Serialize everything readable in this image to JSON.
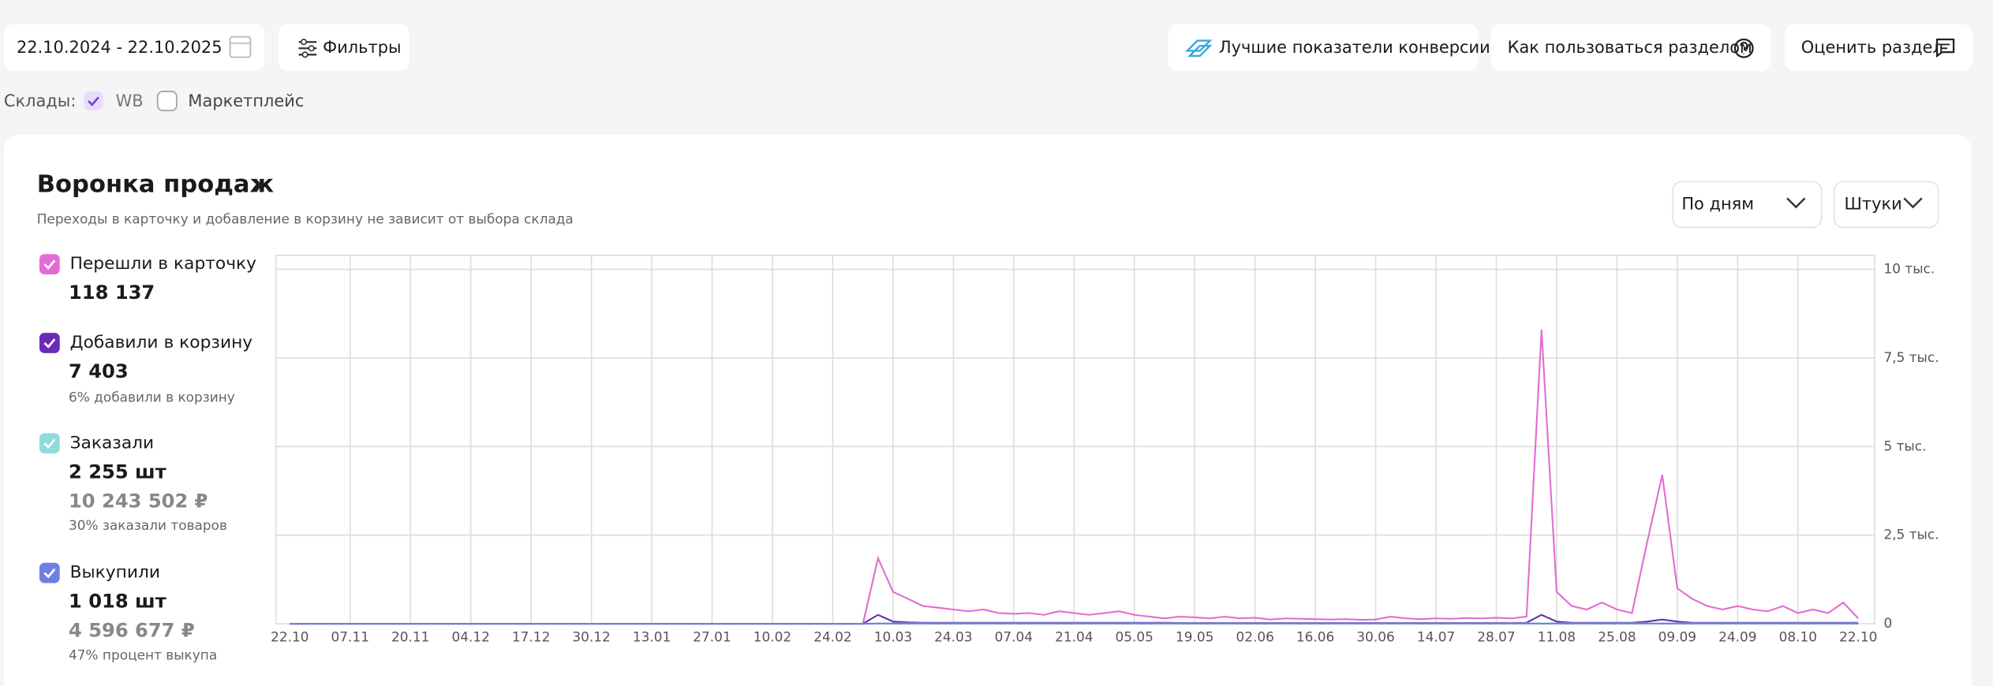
{
  "header": {
    "date_range": "22.10.2024 - 22.10.2025",
    "filters": "Фильтры",
    "best_conversion": "Лучшие показатели конверсии",
    "how_to_use": "Как пользоваться разделом",
    "rate": "Оценить раздел",
    "warehouses_label": "Склады:",
    "warehouse_wb": "WB",
    "warehouse_marketplace": "Маркетплейс"
  },
  "controls": {
    "period": "По дням",
    "units": "Штуки"
  },
  "chart_data": {
    "type": "line",
    "title": "Воронка продаж",
    "subtitle": "Переходы в карточку и добавление в корзину не зависит от выбора склада",
    "categories": [
      "22.10",
      null,
      null,
      null,
      "07.11",
      null,
      null,
      null,
      "20.11",
      null,
      null,
      null,
      "04.12",
      null,
      null,
      null,
      "17.12",
      null,
      null,
      null,
      "30.12",
      null,
      null,
      null,
      "13.01",
      null,
      null,
      null,
      "27.01",
      null,
      null,
      null,
      "10.02",
      null,
      null,
      null,
      "24.02",
      null,
      null,
      null,
      "10.03",
      null,
      null,
      null,
      "24.03",
      null,
      null,
      null,
      "07.04",
      null,
      null,
      null,
      "21.04",
      null,
      null,
      null,
      "05.05",
      null,
      null,
      null,
      "19.05",
      null,
      null,
      null,
      "02.06",
      null,
      null,
      null,
      "16.06",
      null,
      null,
      null,
      "30.06",
      null,
      null,
      null,
      "14.07",
      null,
      null,
      null,
      "28.07",
      null,
      null,
      null,
      "11.08",
      null,
      null,
      null,
      "25.08",
      null,
      null,
      null,
      "09.09",
      null,
      null,
      null,
      "24.09",
      null,
      null,
      null,
      "08.10",
      null,
      null,
      null,
      "22.10"
    ],
    "ylim": [
      0,
      10000
    ],
    "yticks": [
      0,
      {
        "value": 2500,
        "label": "2,5 тыс."
      },
      {
        "value": 5000,
        "label": "5 тыс."
      },
      {
        "value": 7500,
        "label": "7,5 тыс."
      },
      {
        "value": 10000,
        "label": "10 тыс."
      }
    ],
    "grid": true,
    "series": [
      {
        "name": "Перешли в карточку",
        "color": "#e36bd3",
        "total": "118 137",
        "values": [
          0,
          0,
          0,
          0,
          0,
          0,
          0,
          0,
          0,
          0,
          0,
          0,
          0,
          0,
          0,
          0,
          0,
          0,
          0,
          0,
          0,
          0,
          0,
          0,
          0,
          0,
          0,
          0,
          0,
          0,
          0,
          0,
          0,
          0,
          0,
          0,
          0,
          0,
          0,
          1850,
          900,
          700,
          500,
          450,
          400,
          350,
          400,
          300,
          280,
          300,
          250,
          350,
          300,
          250,
          300,
          350,
          250,
          200,
          150,
          200,
          180,
          150,
          200,
          150,
          170,
          120,
          150,
          140,
          130,
          120,
          130,
          110,
          120,
          200,
          150,
          130,
          150,
          140,
          160,
          150,
          170,
          150,
          200,
          8300,
          900,
          500,
          400,
          600,
          400,
          300,
          2300,
          4200,
          1000,
          700,
          500,
          400,
          500,
          400,
          350,
          500,
          300,
          400,
          300,
          600,
          150
        ]
      },
      {
        "name": "Добавили в корзину",
        "color": "#6a2bb8",
        "total": "7 403",
        "note": "6% добавили в корзину",
        "values": [
          0,
          0,
          0,
          0,
          0,
          0,
          0,
          0,
          0,
          0,
          0,
          0,
          0,
          0,
          0,
          0,
          0,
          0,
          0,
          0,
          0,
          0,
          0,
          0,
          0,
          0,
          0,
          0,
          0,
          0,
          0,
          0,
          0,
          0,
          0,
          0,
          0,
          0,
          0,
          250,
          60,
          40,
          30,
          30,
          30,
          30,
          30,
          30,
          30,
          30,
          30,
          30,
          30,
          30,
          30,
          30,
          30,
          30,
          30,
          20,
          20,
          20,
          20,
          20,
          20,
          20,
          20,
          20,
          20,
          20,
          20,
          20,
          20,
          20,
          20,
          20,
          20,
          20,
          20,
          20,
          20,
          20,
          30,
          250,
          60,
          30,
          30,
          30,
          30,
          30,
          60,
          120,
          60,
          30,
          30,
          30,
          30,
          30,
          30,
          30,
          30,
          30,
          30,
          30,
          30
        ]
      },
      {
        "name": "Заказали",
        "color": "#8fdada",
        "total": "2 255 шт",
        "amount": "10 243 502 ₽",
        "note": "30% заказали товаров",
        "values": [
          0,
          0,
          0,
          0,
          0,
          0,
          0,
          0,
          0,
          0,
          0,
          0,
          0,
          0,
          0,
          0,
          0,
          0,
          0,
          0,
          0,
          0,
          0,
          0,
          0,
          0,
          0,
          0,
          0,
          0,
          0,
          0,
          0,
          0,
          0,
          0,
          0,
          0,
          0,
          10,
          10,
          10,
          10,
          10,
          10,
          10,
          10,
          10,
          10,
          10,
          10,
          10,
          10,
          10,
          10,
          10,
          10,
          10,
          10,
          10,
          10,
          10,
          10,
          10,
          10,
          10,
          10,
          10,
          10,
          10,
          10,
          10,
          10,
          10,
          10,
          10,
          10,
          10,
          10,
          10,
          10,
          10,
          10,
          10,
          10,
          10,
          10,
          10,
          10,
          10,
          10,
          10,
          10,
          10,
          10,
          10,
          10,
          10,
          10,
          10,
          10,
          10,
          10,
          10,
          10
        ]
      },
      {
        "name": "Выкупили",
        "color": "#6f7fe0",
        "total": "1 018 шт",
        "amount": "4 596 677 ₽",
        "note": "47% процент выкупа",
        "values": [
          0,
          0,
          0,
          0,
          0,
          0,
          0,
          0,
          0,
          0,
          0,
          0,
          0,
          0,
          0,
          0,
          0,
          0,
          0,
          0,
          0,
          0,
          0,
          0,
          0,
          0,
          0,
          0,
          0,
          0,
          0,
          0,
          0,
          0,
          0,
          0,
          0,
          0,
          0,
          5,
          5,
          5,
          5,
          5,
          5,
          5,
          5,
          5,
          5,
          5,
          5,
          5,
          5,
          5,
          5,
          5,
          5,
          5,
          5,
          5,
          5,
          5,
          5,
          5,
          5,
          5,
          5,
          5,
          5,
          5,
          5,
          5,
          5,
          5,
          5,
          5,
          5,
          5,
          5,
          5,
          5,
          5,
          5,
          5,
          5,
          5,
          5,
          5,
          5,
          5,
          5,
          5,
          5,
          5,
          5,
          5,
          5,
          5,
          5,
          5,
          5,
          5,
          5,
          5,
          5
        ]
      }
    ]
  }
}
